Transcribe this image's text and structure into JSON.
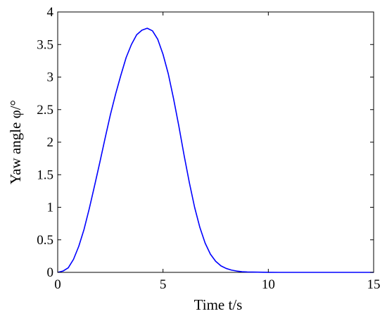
{
  "chart_data": {
    "type": "line",
    "title": "",
    "xlabel": "Time t/s",
    "ylabel": "Yaw angle φ/°",
    "xlim": [
      0,
      15
    ],
    "ylim": [
      0,
      4
    ],
    "xticks": [
      0,
      5,
      10,
      15
    ],
    "xtick_labels": [
      "0",
      "5",
      "10",
      "15"
    ],
    "yticks": [
      0,
      0.5,
      1,
      1.5,
      2,
      2.5,
      3,
      3.5,
      4
    ],
    "ytick_labels": [
      "0",
      "0.5",
      "1",
      "1.5",
      "2",
      "2.5",
      "3",
      "3.5",
      "4"
    ],
    "grid": false,
    "legend": "none",
    "series": [
      {
        "color": "#0000ff",
        "x": [
          0,
          0.25,
          0.5,
          0.75,
          1,
          1.25,
          1.5,
          1.75,
          2,
          2.25,
          2.5,
          2.75,
          3,
          3.25,
          3.5,
          3.75,
          4,
          4.25,
          4.5,
          4.75,
          5,
          5.25,
          5.5,
          5.75,
          6,
          6.25,
          6.5,
          6.75,
          7,
          7.25,
          7.5,
          7.75,
          8,
          8.25,
          8.5,
          8.75,
          9,
          9.5,
          10,
          10.5,
          11,
          12,
          13,
          14,
          15
        ],
        "y": [
          0.0,
          0.02,
          0.07,
          0.2,
          0.4,
          0.66,
          0.98,
          1.33,
          1.69,
          2.06,
          2.42,
          2.74,
          3.03,
          3.3,
          3.5,
          3.65,
          3.72,
          3.75,
          3.71,
          3.58,
          3.35,
          3.05,
          2.67,
          2.25,
          1.8,
          1.38,
          1.0,
          0.69,
          0.45,
          0.28,
          0.17,
          0.1,
          0.06,
          0.035,
          0.02,
          0.01,
          0.006,
          0.003,
          0.001,
          0.0,
          0.0,
          0.0,
          0.0,
          0.0,
          0.0
        ]
      }
    ]
  }
}
